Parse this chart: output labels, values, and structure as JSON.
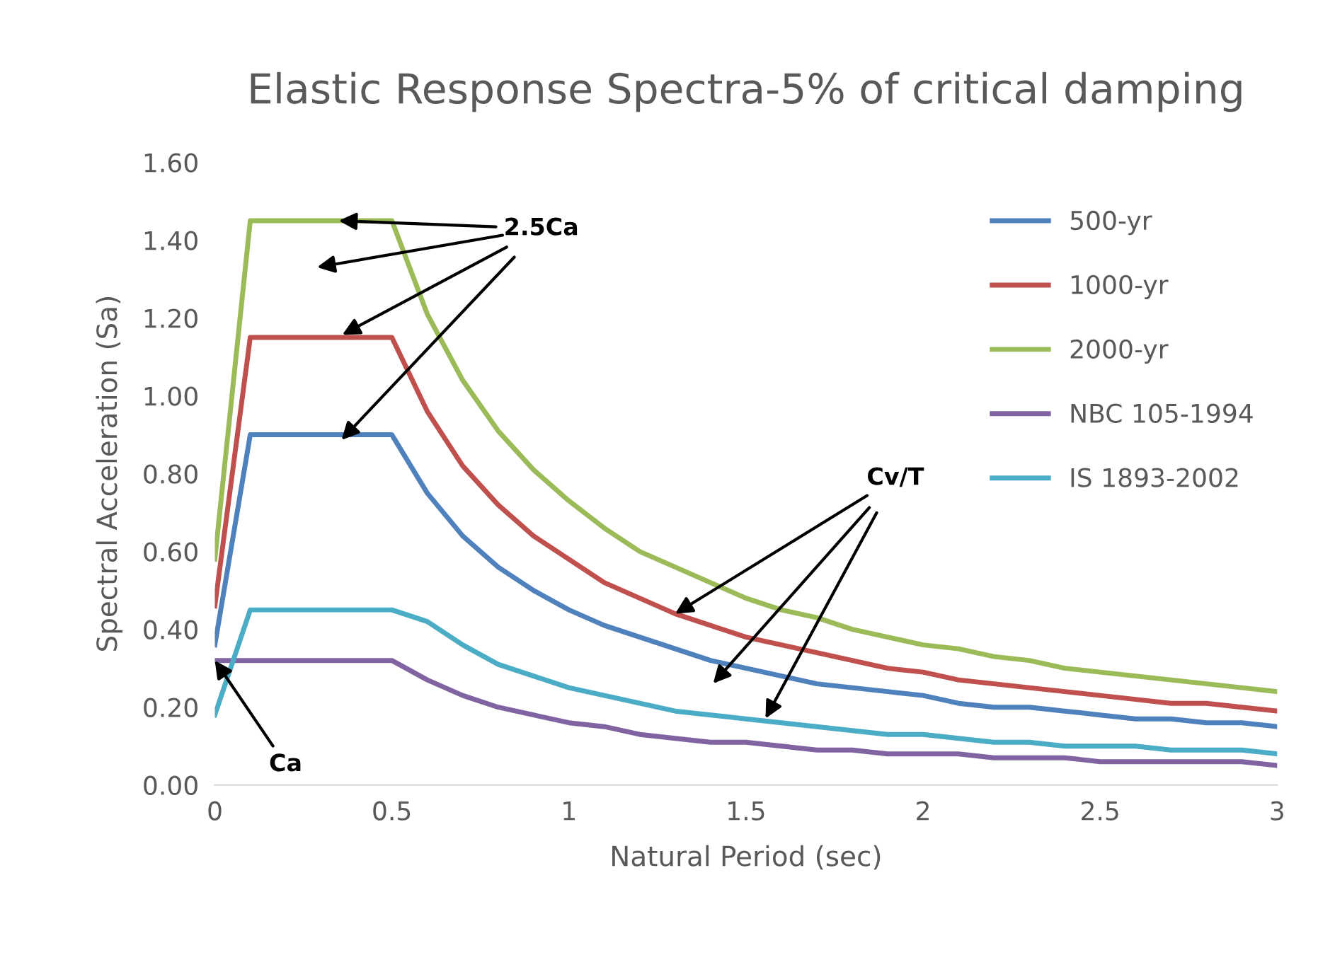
{
  "chart_data": {
    "type": "line",
    "title": "Elastic Response Spectra-5% of critical damping",
    "xlabel": "Natural Period (sec)",
    "ylabel": "Spectral Acceleration (Sa)",
    "x": [
      0,
      0.1,
      0.2,
      0.3,
      0.4,
      0.5,
      0.6,
      0.7,
      0.8,
      0.9,
      1.0,
      1.1,
      1.2,
      1.3,
      1.4,
      1.5,
      1.6,
      1.7,
      1.8,
      1.9,
      2.0,
      2.1,
      2.2,
      2.3,
      2.4,
      2.5,
      2.6,
      2.7,
      2.8,
      2.9,
      3.0
    ],
    "series": [
      {
        "name": "500-yr",
        "color": "#4f81bd",
        "values": [
          0.36,
          0.9,
          0.9,
          0.9,
          0.9,
          0.9,
          0.75,
          0.64,
          0.56,
          0.5,
          0.45,
          0.41,
          0.38,
          0.35,
          0.32,
          0.3,
          0.28,
          0.26,
          0.25,
          0.24,
          0.23,
          0.21,
          0.2,
          0.2,
          0.19,
          0.18,
          0.17,
          0.17,
          0.16,
          0.16,
          0.15
        ]
      },
      {
        "name": "1000-yr",
        "color": "#c0504d",
        "values": [
          0.46,
          1.15,
          1.15,
          1.15,
          1.15,
          1.15,
          0.96,
          0.82,
          0.72,
          0.64,
          0.58,
          0.52,
          0.48,
          0.44,
          0.41,
          0.38,
          0.36,
          0.34,
          0.32,
          0.3,
          0.29,
          0.27,
          0.26,
          0.25,
          0.24,
          0.23,
          0.22,
          0.21,
          0.21,
          0.2,
          0.19
        ]
      },
      {
        "name": "2000-yr",
        "color": "#9bbb59",
        "values": [
          0.58,
          1.45,
          1.45,
          1.45,
          1.45,
          1.45,
          1.21,
          1.04,
          0.91,
          0.81,
          0.73,
          0.66,
          0.6,
          0.56,
          0.52,
          0.48,
          0.45,
          0.43,
          0.4,
          0.38,
          0.36,
          0.35,
          0.33,
          0.32,
          0.3,
          0.29,
          0.28,
          0.27,
          0.26,
          0.25,
          0.24
        ]
      },
      {
        "name": "NBC 105-1994",
        "color": "#8064a2",
        "values": [
          0.32,
          0.32,
          0.32,
          0.32,
          0.32,
          0.32,
          0.27,
          0.23,
          0.2,
          0.18,
          0.16,
          0.15,
          0.13,
          0.12,
          0.11,
          0.11,
          0.1,
          0.09,
          0.09,
          0.08,
          0.08,
          0.08,
          0.07,
          0.07,
          0.07,
          0.06,
          0.06,
          0.06,
          0.06,
          0.06,
          0.05
        ]
      },
      {
        "name": "IS 1893-2002",
        "color": "#4bacc6",
        "values": [
          0.18,
          0.45,
          0.45,
          0.45,
          0.45,
          0.45,
          0.42,
          0.36,
          0.31,
          0.28,
          0.25,
          0.23,
          0.21,
          0.19,
          0.18,
          0.17,
          0.16,
          0.15,
          0.14,
          0.13,
          0.13,
          0.12,
          0.11,
          0.11,
          0.1,
          0.1,
          0.1,
          0.09,
          0.09,
          0.09,
          0.08
        ]
      }
    ],
    "xlim": [
      0,
      3
    ],
    "xticks": [
      0,
      0.5,
      1,
      1.5,
      2,
      2.5,
      3
    ],
    "ylim": [
      0,
      1.6
    ],
    "yticks": [
      {
        "value": 0,
        "label": "0.00"
      },
      {
        "value": 0.2,
        "label": "0.20"
      },
      {
        "value": 0.4,
        "label": "0.40"
      },
      {
        "value": 0.6,
        "label": "0.60"
      },
      {
        "value": 0.8,
        "label": "0.80"
      },
      {
        "value": 1.0,
        "label": "1.00"
      },
      {
        "value": 1.2,
        "label": "1.20"
      },
      {
        "value": 1.4,
        "label": "1.40"
      },
      {
        "value": 1.6,
        "label": "1.60"
      }
    ],
    "annotations": [
      {
        "text": "2.5Ca",
        "x": 0.35,
        "y": 1.45
      },
      {
        "text": "Cv/T",
        "x": 1.3,
        "y": 0.44
      },
      {
        "text": "Ca",
        "x": 0,
        "y": 0.32
      }
    ],
    "legend": "right",
    "grid": false,
    "marker": "none",
    "line_style": "solid"
  }
}
